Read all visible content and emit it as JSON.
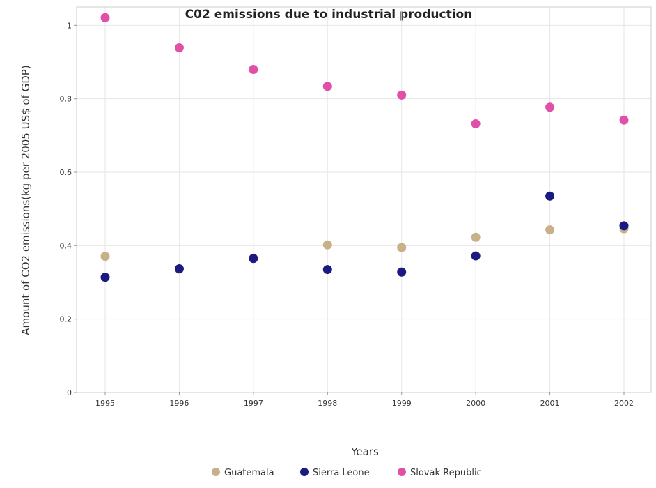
{
  "chart_data": {
    "type": "scatter",
    "title": "C02 emissions due to industrial production",
    "xlabel": "Years",
    "ylabel": "Amount of CO2 emissions(kg per 2005 US$ of GDP)",
    "x": [
      "1995",
      "1996",
      "1997",
      "1998",
      "1999",
      "2000",
      "2001",
      "2002"
    ],
    "ylim": [
      0,
      1.05
    ],
    "yticks": [
      "0",
      "0.2",
      "0.4",
      "0.6",
      "0.8",
      "1"
    ],
    "grid": true,
    "legend_position": "bottom",
    "series": [
      {
        "name": "Guatemala",
        "color": "#c8b088",
        "values": [
          0.371,
          0.336,
          0.366,
          0.402,
          0.395,
          0.423,
          0.443,
          0.446
        ]
      },
      {
        "name": "Sierra Leone",
        "color": "#1a1a80",
        "values": [
          0.314,
          0.337,
          0.365,
          0.335,
          0.328,
          0.372,
          0.535,
          0.454
        ]
      },
      {
        "name": "Slovak Republic",
        "color": "#e050a8",
        "values": [
          1.021,
          0.939,
          0.88,
          0.834,
          0.81,
          0.732,
          0.777,
          0.742
        ]
      }
    ]
  }
}
